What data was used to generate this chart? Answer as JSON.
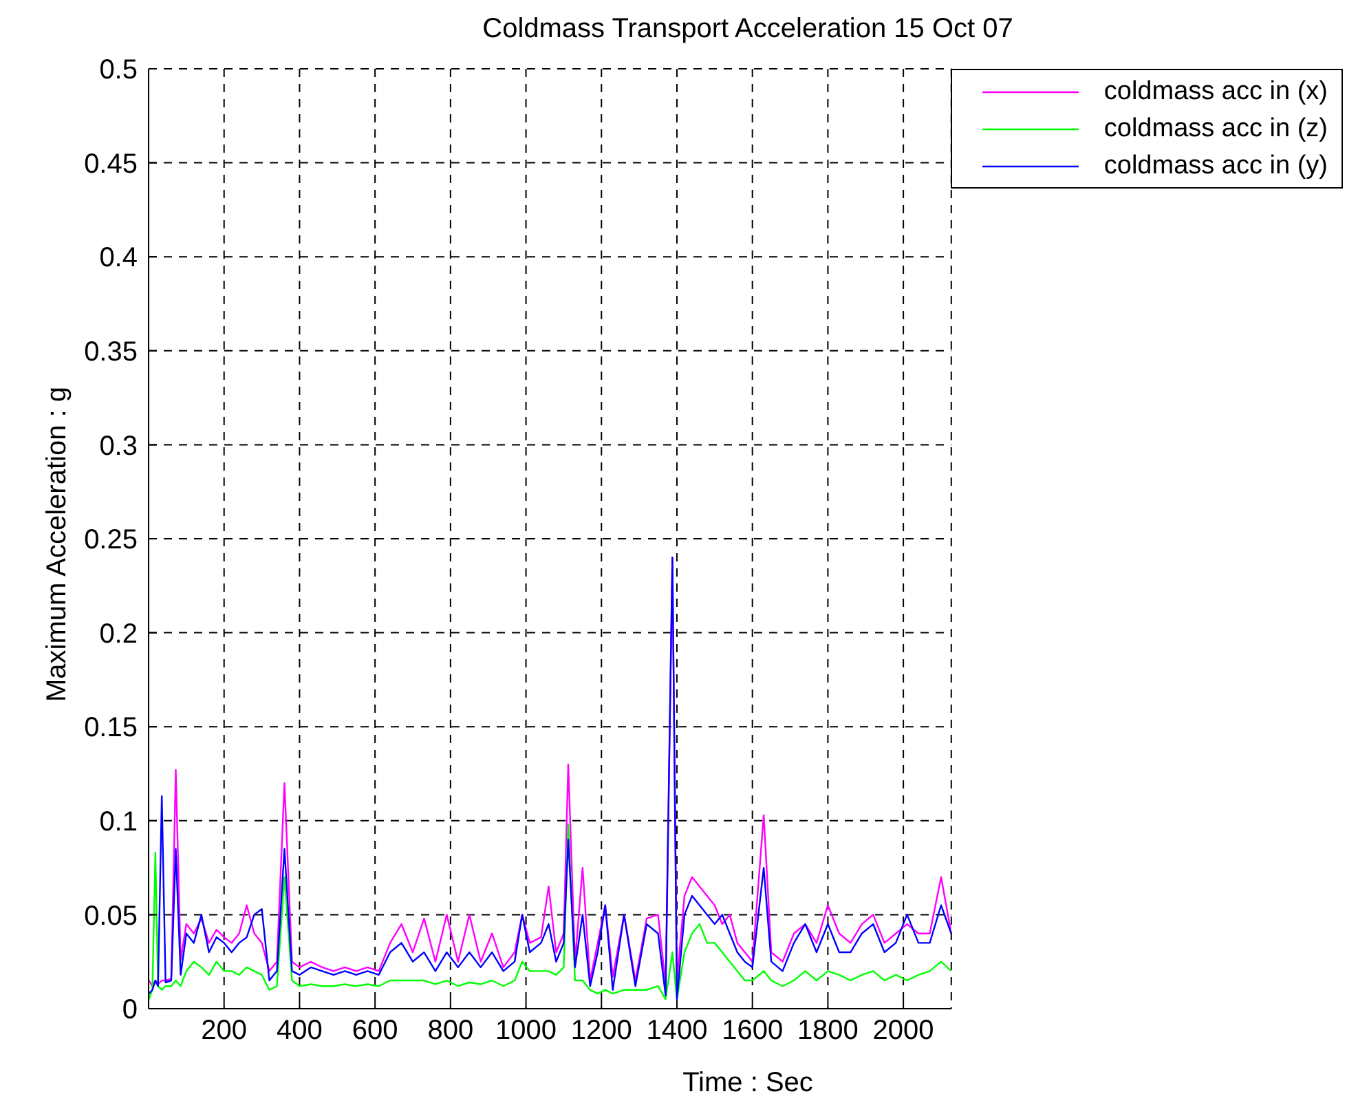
{
  "chart_data": {
    "type": "line",
    "title": "Coldmass Transport Acceleration 15 Oct 07",
    "xlabel": "Time : Sec",
    "ylabel": "Maximum Acceleration : g",
    "x": [
      1,
      10,
      18,
      25,
      35,
      45,
      60,
      72,
      85,
      100,
      120,
      140,
      160,
      180,
      200,
      220,
      240,
      260,
      280,
      300,
      320,
      340,
      360,
      380,
      400,
      430,
      460,
      490,
      520,
      550,
      580,
      610,
      640,
      670,
      700,
      730,
      760,
      790,
      820,
      850,
      880,
      910,
      940,
      970,
      990,
      1010,
      1040,
      1060,
      1080,
      1100,
      1112,
      1130,
      1150,
      1170,
      1190,
      1210,
      1230,
      1260,
      1290,
      1320,
      1350,
      1370,
      1388,
      1400,
      1420,
      1440,
      1460,
      1480,
      1500,
      1520,
      1540,
      1560,
      1580,
      1600,
      1630,
      1650,
      1680,
      1710,
      1740,
      1770,
      1800,
      1830,
      1860,
      1890,
      1920,
      1950,
      1980,
      2010,
      2040,
      2070,
      2100,
      2127
    ],
    "series": [
      {
        "name": "coldmass acc in (x)",
        "color": "#ff00ff",
        "values": [
          0.015,
          0.012,
          0.015,
          0.013,
          0.015,
          0.015,
          0.016,
          0.127,
          0.026,
          0.045,
          0.04,
          0.048,
          0.035,
          0.042,
          0.038,
          0.035,
          0.04,
          0.055,
          0.04,
          0.035,
          0.02,
          0.025,
          0.12,
          0.025,
          0.022,
          0.025,
          0.022,
          0.02,
          0.022,
          0.02,
          0.022,
          0.02,
          0.035,
          0.045,
          0.03,
          0.048,
          0.025,
          0.05,
          0.025,
          0.05,
          0.025,
          0.04,
          0.022,
          0.03,
          0.05,
          0.035,
          0.038,
          0.065,
          0.03,
          0.04,
          0.13,
          0.025,
          0.075,
          0.015,
          0.035,
          0.055,
          0.017,
          0.05,
          0.015,
          0.048,
          0.05,
          0.013,
          0.24,
          0.015,
          0.06,
          0.07,
          0.065,
          0.06,
          0.055,
          0.045,
          0.05,
          0.035,
          0.03,
          0.025,
          0.103,
          0.03,
          0.025,
          0.04,
          0.045,
          0.035,
          0.055,
          0.04,
          0.035,
          0.045,
          0.05,
          0.035,
          0.04,
          0.045,
          0.04,
          0.04,
          0.07,
          0.04
        ]
      },
      {
        "name": "coldmass acc in (z)",
        "color": "#00ff00",
        "values": [
          0.005,
          0.01,
          0.083,
          0.012,
          0.01,
          0.012,
          0.012,
          0.015,
          0.012,
          0.02,
          0.025,
          0.022,
          0.018,
          0.025,
          0.02,
          0.02,
          0.018,
          0.022,
          0.02,
          0.018,
          0.01,
          0.012,
          0.07,
          0.015,
          0.012,
          0.013,
          0.012,
          0.012,
          0.013,
          0.012,
          0.013,
          0.012,
          0.015,
          0.015,
          0.015,
          0.015,
          0.013,
          0.015,
          0.012,
          0.014,
          0.013,
          0.015,
          0.012,
          0.015,
          0.025,
          0.02,
          0.02,
          0.02,
          0.018,
          0.022,
          0.098,
          0.015,
          0.015,
          0.01,
          0.008,
          0.01,
          0.008,
          0.01,
          0.01,
          0.01,
          0.012,
          0.005,
          0.03,
          0.005,
          0.03,
          0.04,
          0.045,
          0.035,
          0.035,
          0.03,
          0.025,
          0.02,
          0.015,
          0.015,
          0.02,
          0.015,
          0.012,
          0.015,
          0.02,
          0.015,
          0.02,
          0.018,
          0.015,
          0.018,
          0.02,
          0.015,
          0.018,
          0.015,
          0.018,
          0.02,
          0.025,
          0.02
        ]
      },
      {
        "name": "coldmass acc in (y)",
        "color": "#0000ff",
        "values": [
          0.008,
          0.01,
          0.015,
          0.012,
          0.113,
          0.014,
          0.015,
          0.085,
          0.018,
          0.04,
          0.035,
          0.05,
          0.03,
          0.038,
          0.035,
          0.03,
          0.035,
          0.038,
          0.05,
          0.053,
          0.015,
          0.02,
          0.085,
          0.02,
          0.018,
          0.022,
          0.02,
          0.018,
          0.02,
          0.018,
          0.02,
          0.018,
          0.03,
          0.035,
          0.025,
          0.03,
          0.02,
          0.03,
          0.022,
          0.03,
          0.022,
          0.03,
          0.02,
          0.025,
          0.05,
          0.03,
          0.035,
          0.045,
          0.025,
          0.035,
          0.09,
          0.022,
          0.05,
          0.012,
          0.03,
          0.055,
          0.01,
          0.05,
          0.012,
          0.045,
          0.04,
          0.007,
          0.24,
          0.005,
          0.05,
          0.06,
          0.055,
          0.05,
          0.045,
          0.05,
          0.04,
          0.03,
          0.025,
          0.022,
          0.075,
          0.025,
          0.02,
          0.035,
          0.045,
          0.03,
          0.045,
          0.03,
          0.03,
          0.04,
          0.045,
          0.03,
          0.035,
          0.05,
          0.035,
          0.035,
          0.055,
          0.04
        ]
      }
    ],
    "xlim": [
      0,
      2127
    ],
    "xticks": [
      200,
      400,
      600,
      800,
      1000,
      1200,
      1400,
      1600,
      1800,
      2000
    ],
    "ylim": [
      0,
      0.5
    ],
    "yticks": [
      0,
      0.05,
      0.1,
      0.15,
      0.2,
      0.25,
      0.3,
      0.35,
      0.4,
      0.45,
      0.5
    ],
    "grid": true,
    "legend": "top right",
    "line_style": "solid",
    "marker": "none"
  }
}
